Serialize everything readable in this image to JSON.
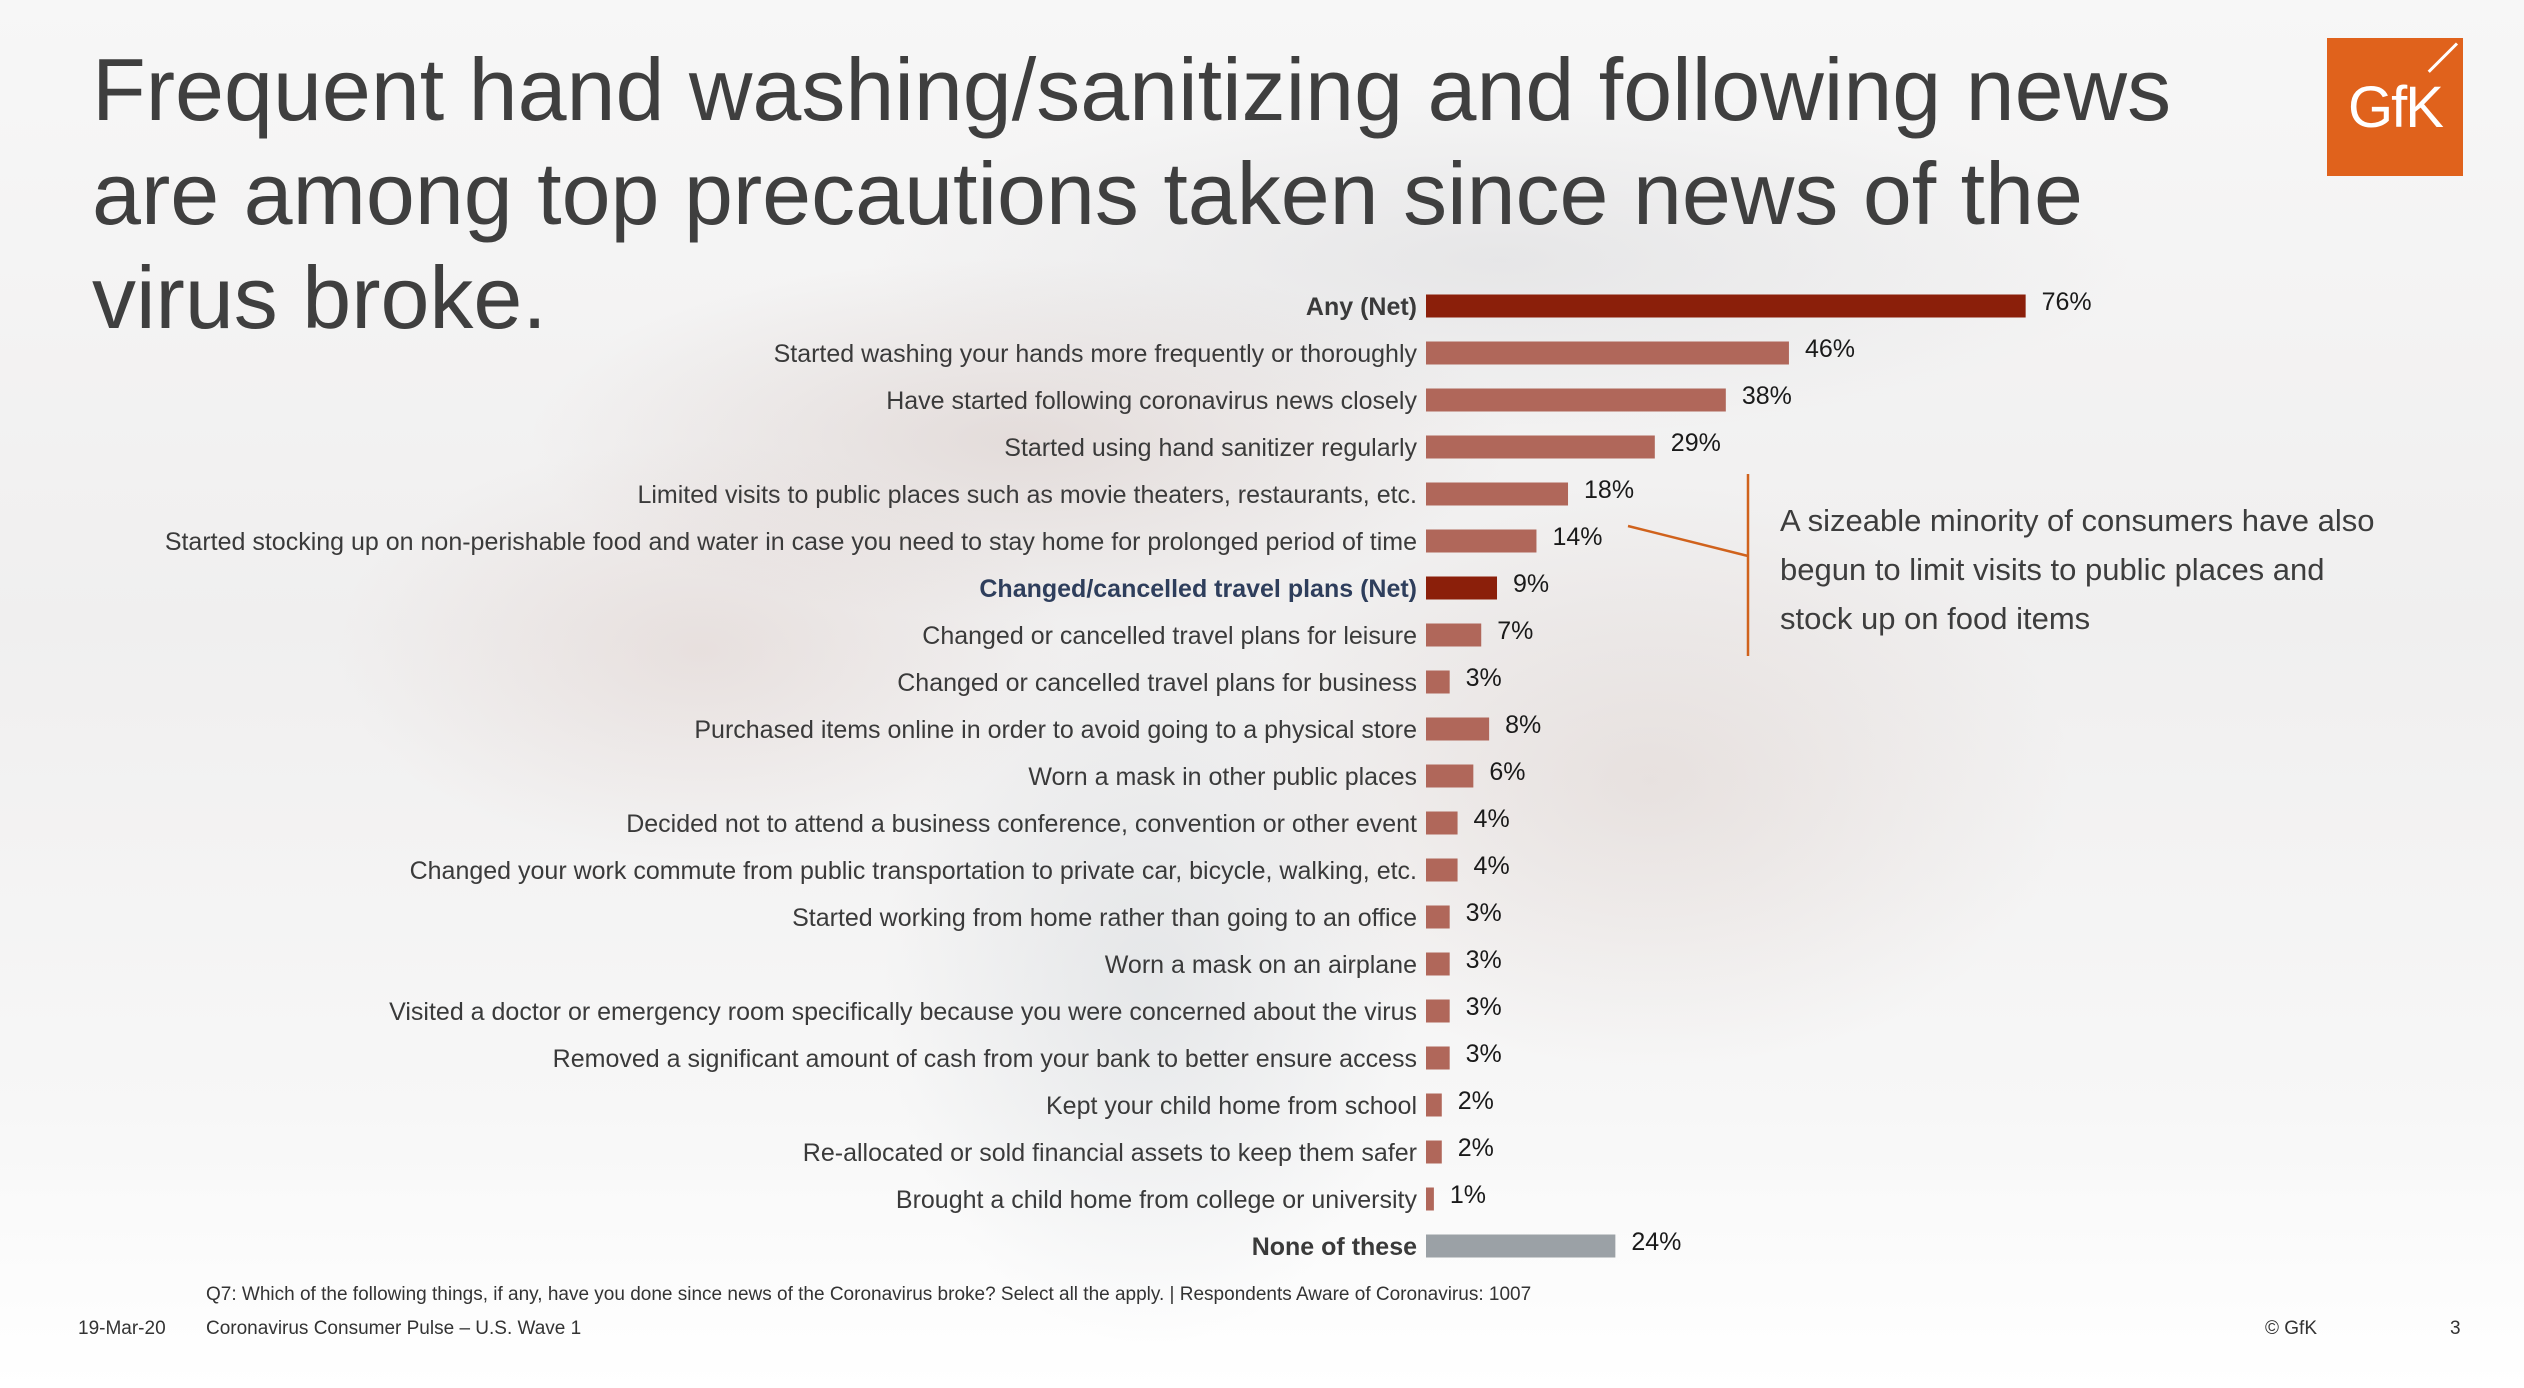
{
  "title": "Frequent hand washing/sanitizing and following news are among top precautions taken since news of the virus broke.",
  "logo": {
    "text": "GfK",
    "color": "#e0621c"
  },
  "colors": {
    "net": "#8b1f0a",
    "item": "#b0675a",
    "none": "#9ba1a6",
    "callout_line": "#d0621c"
  },
  "chart_data": {
    "type": "bar",
    "orientation": "horizontal",
    "value_suffix": "%",
    "xlim": [
      0,
      100
    ],
    "grid": false,
    "categories": [
      "Any (Net)",
      "Started washing your hands more frequently or thoroughly",
      "Have started following coronavirus news closely",
      "Started using hand sanitizer regularly",
      "Limited visits to public places such as movie theaters, restaurants, etc.",
      "Started stocking up on non-perishable food and water in case you need to stay home for prolonged period of time",
      "Changed/cancelled travel plans (Net)",
      "Changed or cancelled travel plans for leisure",
      "Changed or cancelled travel plans for business",
      "Purchased items online in order to avoid going to a physical store",
      "Worn a mask in other public places",
      "Decided not to attend a business conference, convention or other event",
      "Changed your work commute from public transportation to private car, bicycle, walking, etc.",
      "Started working from home rather than going to an office",
      "Worn a mask on an airplane",
      "Visited a doctor or emergency room specifically because you were concerned about the virus",
      "Removed a significant amount of cash from your bank to better ensure access",
      "Kept your child home from school",
      "Re-allocated or sold financial assets to keep them safer",
      "Brought a child home from college or university",
      "None of these"
    ],
    "values": [
      76,
      46,
      38,
      29,
      18,
      14,
      9,
      7,
      3,
      8,
      6,
      4,
      4,
      3,
      3,
      3,
      3,
      2,
      2,
      1,
      24
    ],
    "value_labels": [
      "76%",
      "46%",
      "38%",
      "29%",
      "18%",
      "14%",
      "9%",
      "7%",
      "3%",
      "8%",
      "6%",
      "4%",
      "4%",
      "3%",
      "3%",
      "3%",
      "3%",
      "2%",
      "2%",
      "1%",
      "24%"
    ],
    "kinds": [
      "net",
      "item",
      "item",
      "item",
      "item",
      "item",
      "net-blue",
      "item",
      "item",
      "item",
      "item",
      "item",
      "item",
      "item",
      "item",
      "item",
      "item",
      "item",
      "item",
      "item",
      "none"
    ]
  },
  "annotation": "A sizeable minority of consumers have also begun to limit visits to public places and stock up on food items",
  "footnote": "Q7: Which of the following things, if any, have you done since news of the Coronavirus broke? Select all the apply. | Respondents Aware of Coronavirus: 1007",
  "footer": {
    "date": "19-Mar-20",
    "title": "Coronavirus Consumer Pulse – U.S. Wave 1",
    "copyright": "© GfK",
    "page": "3"
  }
}
